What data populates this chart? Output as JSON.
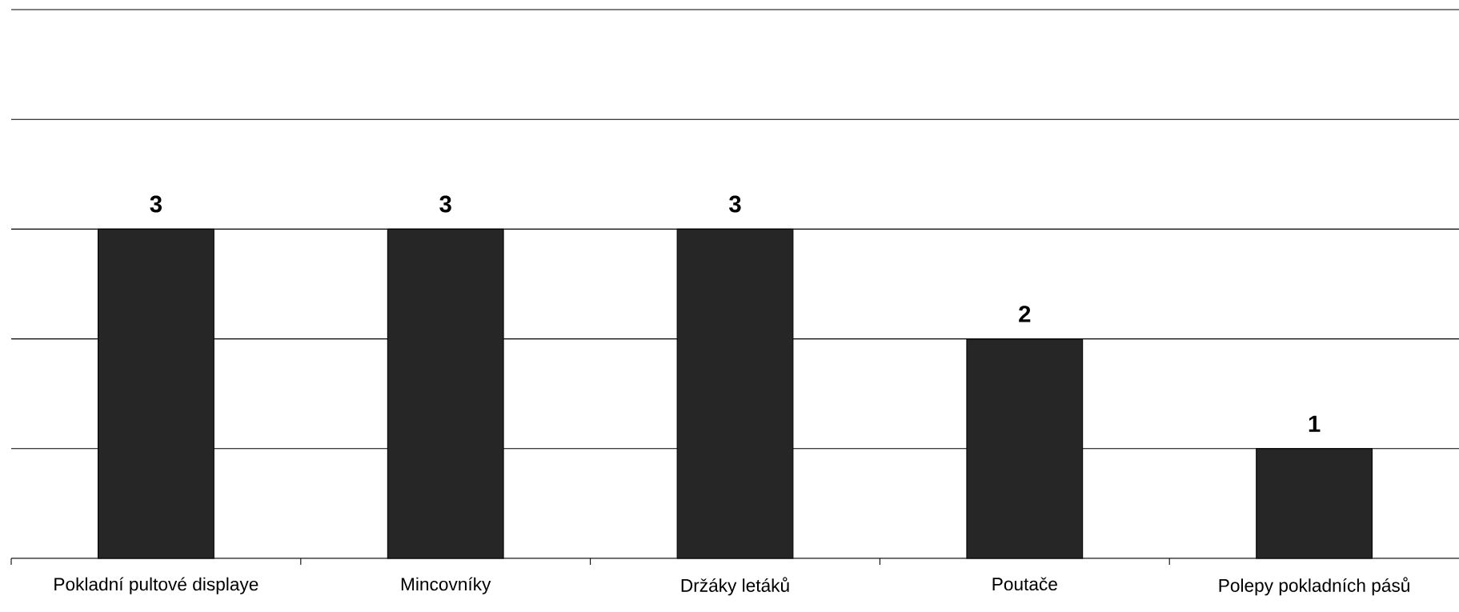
{
  "chart_data": {
    "type": "bar",
    "categories": [
      "Pokladní pultové displaye",
      "Mincovníky",
      "Držáky letáků",
      "Poutače",
      "Polepy pokladních pásů"
    ],
    "values": [
      3,
      3,
      3,
      2,
      1
    ],
    "color": "#262626",
    "ylim": [
      0,
      5
    ],
    "grid": "y",
    "tick_labels": "x",
    "data_labels": true
  }
}
